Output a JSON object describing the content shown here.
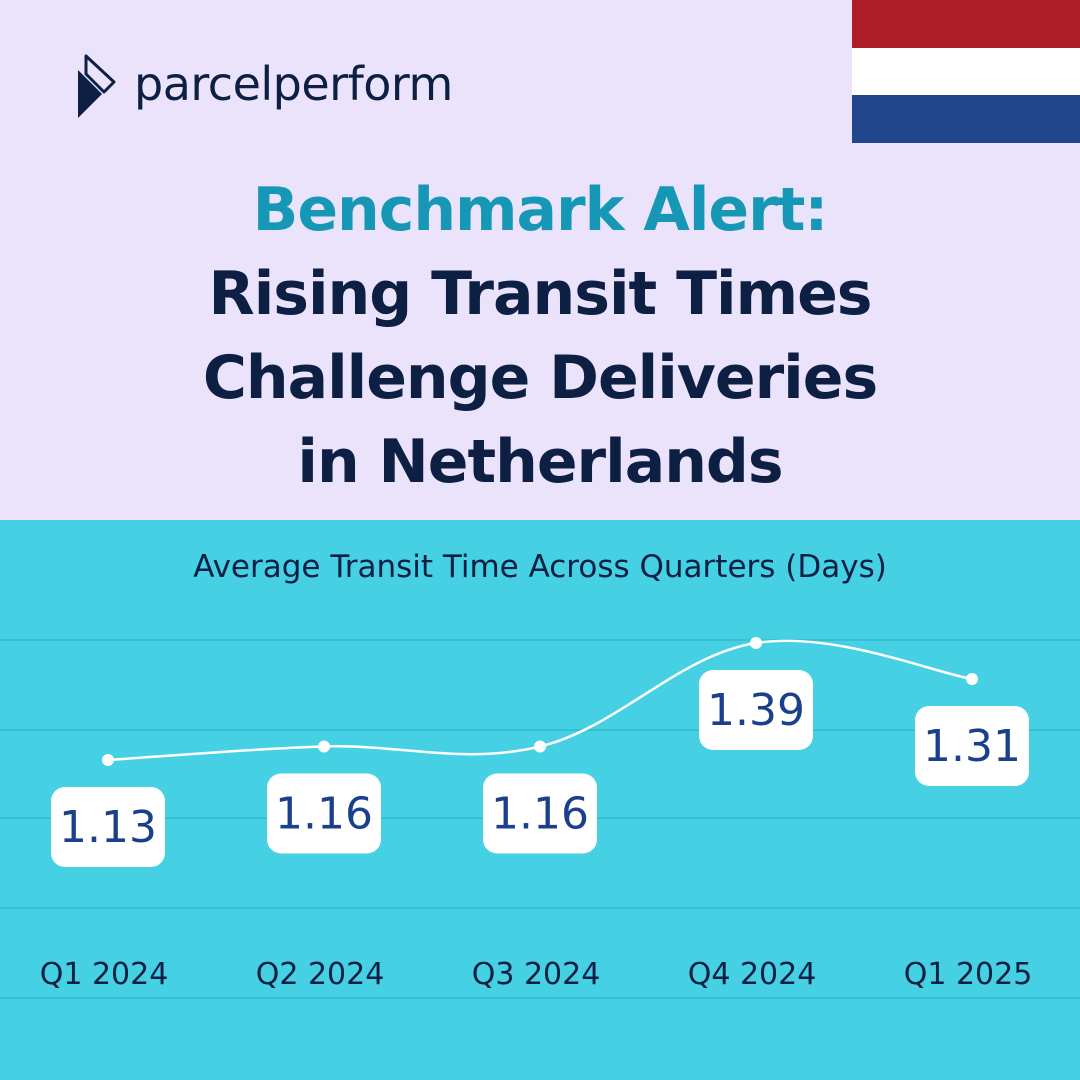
{
  "brand": {
    "name": "parcelperform"
  },
  "flag": {
    "colors": [
      "#ae1c28",
      "#ffffff",
      "#21468b"
    ]
  },
  "headline": {
    "line1": "Benchmark Alert:",
    "line2": "Rising Transit Times",
    "line3": "Challenge Deliveries",
    "line4": "in Netherlands"
  },
  "colors": {
    "accent": "#1697b5",
    "navy": "#0e1f44",
    "top_bg": "#ebe3fb",
    "chart_bg": "#45d0e3"
  },
  "chart_data": {
    "type": "line",
    "title": "Average Transit Time Across Quarters (Days)",
    "categories": [
      "Q1 2024",
      "Q2 2024",
      "Q3 2024",
      "Q4 2024",
      "Q1 2025"
    ],
    "series": [
      {
        "values": [
          1.13,
          1.16,
          1.16,
          1.39,
          1.31
        ]
      }
    ],
    "value_labels": [
      "1.13",
      "1.16",
      "1.16",
      "1.39",
      "1.31"
    ],
    "xlabel": "",
    "ylabel": "",
    "grid": true,
    "legend": "none"
  }
}
